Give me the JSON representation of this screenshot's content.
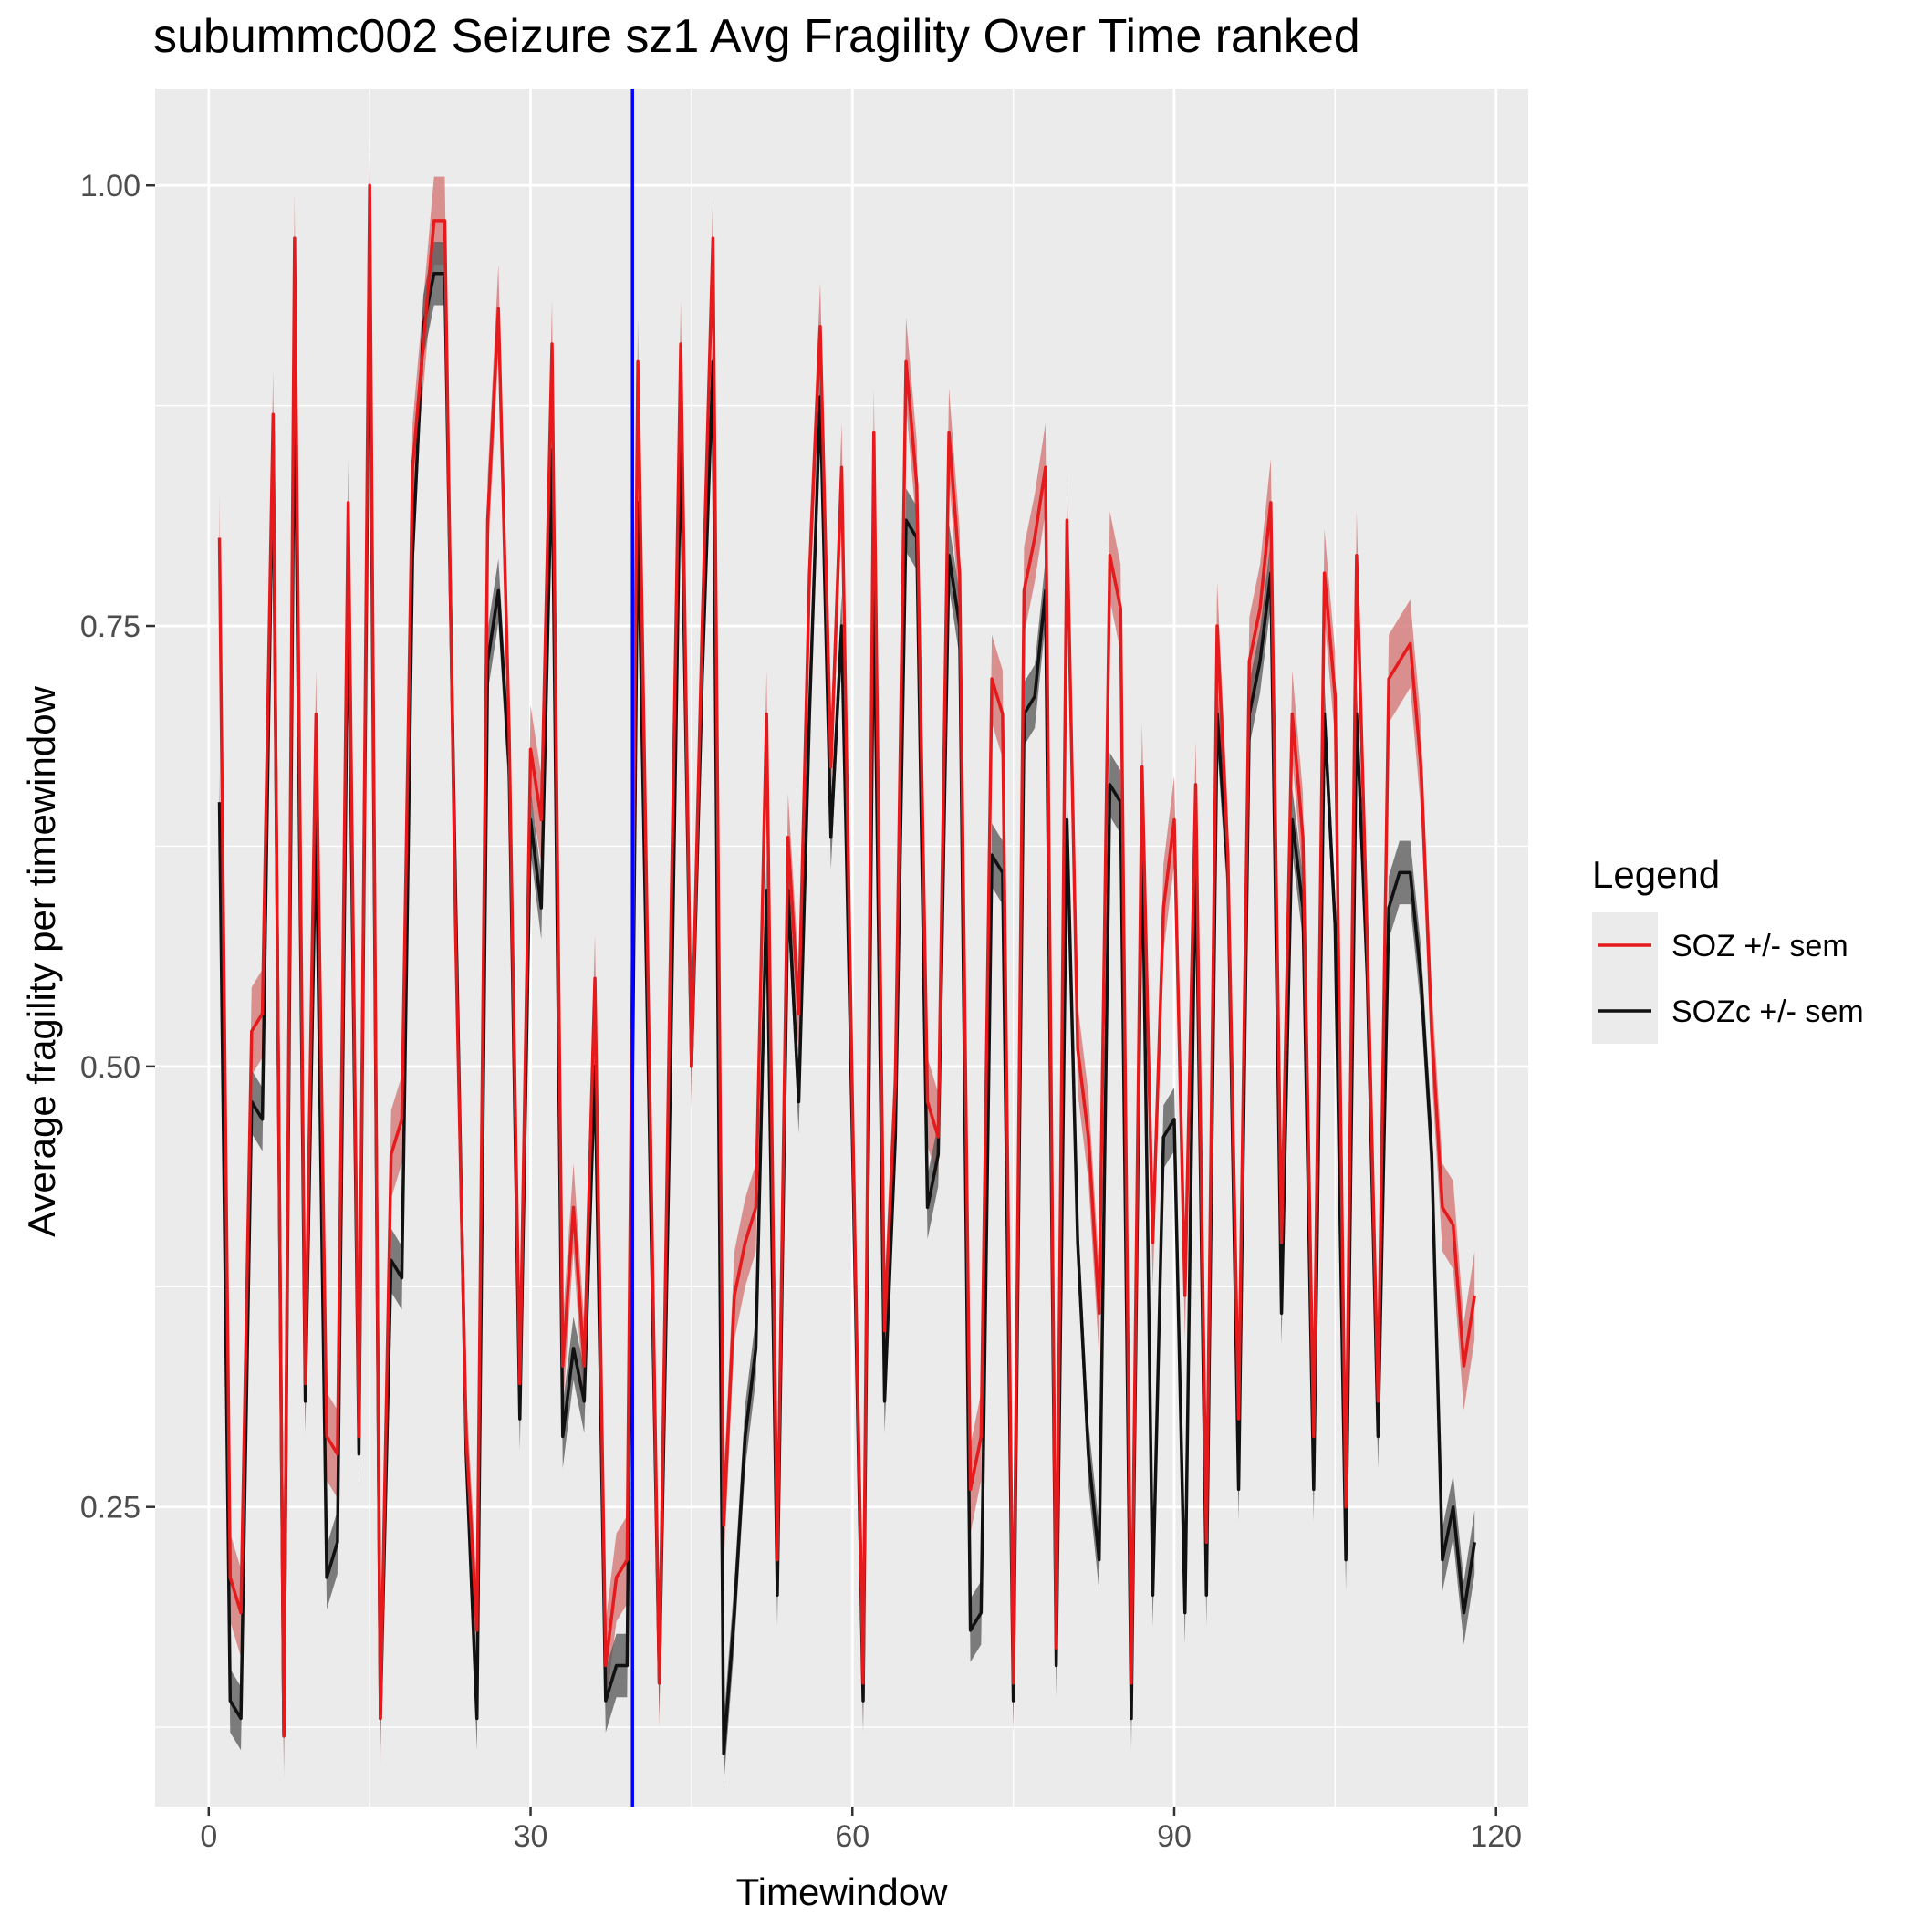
{
  "chart_data": {
    "type": "line",
    "title": "subummc002 Seizure sz1 Avg Fragility Over Time ranked",
    "xlabel": "Timewindow",
    "ylabel": "Average fragility per timewindow",
    "xlim": [
      -5,
      123
    ],
    "ylim": [
      0.08,
      1.055
    ],
    "x_ticks": [
      0,
      30,
      60,
      90,
      120
    ],
    "y_ticks": [
      0.25,
      0.5,
      0.75,
      1.0
    ],
    "y_tick_labels": [
      "0.25",
      "0.50",
      "0.75",
      "1.00"
    ],
    "grid": true,
    "vline": {
      "x": 39.5,
      "color": "#0000ff"
    },
    "legend": {
      "title": "Legend",
      "position": "right"
    },
    "x": [
      1,
      2,
      3,
      4,
      5,
      6,
      7,
      8,
      9,
      10,
      11,
      12,
      13,
      14,
      15,
      16,
      17,
      18,
      19,
      20,
      21,
      22,
      23,
      24,
      25,
      26,
      27,
      28,
      29,
      30,
      31,
      32,
      33,
      34,
      35,
      36,
      37,
      38,
      39,
      40,
      41,
      42,
      43,
      44,
      45,
      46,
      47,
      48,
      49,
      50,
      51,
      52,
      53,
      54,
      55,
      56,
      57,
      58,
      59,
      60,
      61,
      62,
      63,
      64,
      65,
      66,
      67,
      68,
      69,
      70,
      71,
      72,
      73,
      74,
      75,
      76,
      77,
      78,
      79,
      80,
      81,
      82,
      83,
      84,
      85,
      86,
      87,
      88,
      89,
      90,
      91,
      92,
      93,
      94,
      95,
      96,
      97,
      98,
      99,
      100,
      101,
      102,
      103,
      104,
      105,
      106,
      107,
      108,
      109,
      110,
      111,
      112,
      113,
      114,
      115,
      116,
      117,
      118
    ],
    "series": [
      {
        "name": "SOZ +/- sem",
        "color": "#e41a1c",
        "band_color": "#d77f7f",
        "values": [
          0.8,
          0.21,
          0.19,
          0.52,
          0.53,
          0.87,
          0.12,
          0.97,
          0.32,
          0.7,
          0.29,
          0.28,
          0.82,
          0.29,
          1.0,
          0.13,
          0.45,
          0.47,
          0.84,
          0.91,
          0.98,
          0.98,
          0.58,
          0.29,
          0.18,
          0.81,
          0.93,
          0.69,
          0.32,
          0.68,
          0.64,
          0.91,
          0.33,
          0.42,
          0.33,
          0.55,
          0.16,
          0.21,
          0.22,
          0.9,
          0.53,
          0.15,
          0.55,
          0.91,
          0.5,
          0.75,
          0.97,
          0.24,
          0.37,
          0.4,
          0.42,
          0.7,
          0.22,
          0.63,
          0.53,
          0.78,
          0.92,
          0.67,
          0.84,
          0.48,
          0.15,
          0.86,
          0.35,
          0.49,
          0.9,
          0.83,
          0.48,
          0.46,
          0.86,
          0.78,
          0.26,
          0.29,
          0.72,
          0.7,
          0.15,
          0.77,
          0.8,
          0.84,
          0.17,
          0.81,
          0.51,
          0.46,
          0.36,
          0.79,
          0.76,
          0.15,
          0.67,
          0.4,
          0.59,
          0.64,
          0.37,
          0.66,
          0.23,
          0.75,
          0.62,
          0.3,
          0.73,
          0.76,
          0.82,
          0.4,
          0.7,
          0.63,
          0.29,
          0.78,
          0.71,
          0.25,
          0.79,
          0.57,
          0.31,
          0.72,
          0.73,
          0.74,
          0.67,
          0.52,
          0.42,
          0.41,
          0.33,
          0.37
        ]
      },
      {
        "name": "SOZc +/- sem",
        "color": "#111111",
        "band_color": "#555555",
        "values": [
          0.65,
          0.14,
          0.13,
          0.48,
          0.47,
          0.86,
          0.12,
          0.91,
          0.31,
          0.64,
          0.21,
          0.23,
          0.78,
          0.28,
          0.97,
          0.13,
          0.39,
          0.38,
          0.79,
          0.92,
          0.95,
          0.95,
          0.6,
          0.28,
          0.13,
          0.73,
          0.77,
          0.67,
          0.3,
          0.64,
          0.59,
          0.85,
          0.29,
          0.34,
          0.31,
          0.5,
          0.14,
          0.16,
          0.16,
          0.82,
          0.49,
          0.15,
          0.48,
          0.86,
          0.5,
          0.72,
          0.9,
          0.11,
          0.19,
          0.29,
          0.34,
          0.6,
          0.2,
          0.6,
          0.48,
          0.7,
          0.88,
          0.63,
          0.75,
          0.46,
          0.14,
          0.78,
          0.31,
          0.46,
          0.81,
          0.8,
          0.42,
          0.45,
          0.79,
          0.75,
          0.18,
          0.19,
          0.62,
          0.61,
          0.14,
          0.7,
          0.71,
          0.77,
          0.16,
          0.64,
          0.4,
          0.28,
          0.22,
          0.66,
          0.65,
          0.13,
          0.64,
          0.2,
          0.46,
          0.47,
          0.19,
          0.63,
          0.2,
          0.7,
          0.61,
          0.26,
          0.7,
          0.73,
          0.78,
          0.36,
          0.64,
          0.59,
          0.26,
          0.7,
          0.58,
          0.22,
          0.7,
          0.55,
          0.29,
          0.59,
          0.61,
          0.61,
          0.55,
          0.45,
          0.22,
          0.25,
          0.19,
          0.23
        ]
      }
    ]
  }
}
